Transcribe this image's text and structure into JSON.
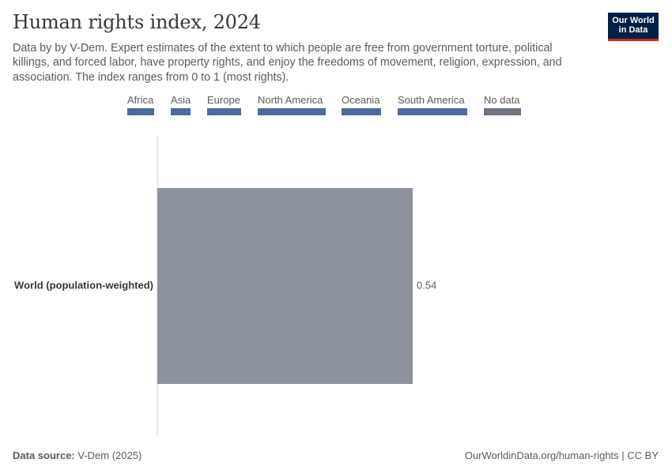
{
  "header": {
    "title": "Human rights index, 2024",
    "subtitle": "Data by by V-Dem. Expert estimates of the extent to which people are free from government torture, political killings, and forced labor, have property rights, and enjoy the freedoms of movement, religion, expression, and association. The index ranges from 0 to 1 (most rights).",
    "logo_line1": "Our World",
    "logo_line2": "in Data"
  },
  "legend": [
    {
      "label": "Africa",
      "color": "#4c6a9c"
    },
    {
      "label": "Asia",
      "color": "#4c6a9c"
    },
    {
      "label": "Europe",
      "color": "#4c6a9c"
    },
    {
      "label": "North America",
      "color": "#4c6a9c"
    },
    {
      "label": "Oceania",
      "color": "#4c6a9c"
    },
    {
      "label": "South America",
      "color": "#4c6a9c"
    },
    {
      "label": "No data",
      "color": "#6e7581"
    }
  ],
  "chart_data": {
    "type": "bar",
    "orientation": "horizontal",
    "title": "Human rights index, 2024",
    "categories": [
      "World (population-weighted)"
    ],
    "values": [
      0.54
    ],
    "value_labels": [
      "0.54"
    ],
    "bar_color": "#8c939c",
    "xlim": [
      0,
      1
    ],
    "grid": false
  },
  "footer": {
    "source_label": "Data source:",
    "source_value": "V-Dem (2025)",
    "right_text": "OurWorldinData.org/human-rights | CC BY"
  }
}
